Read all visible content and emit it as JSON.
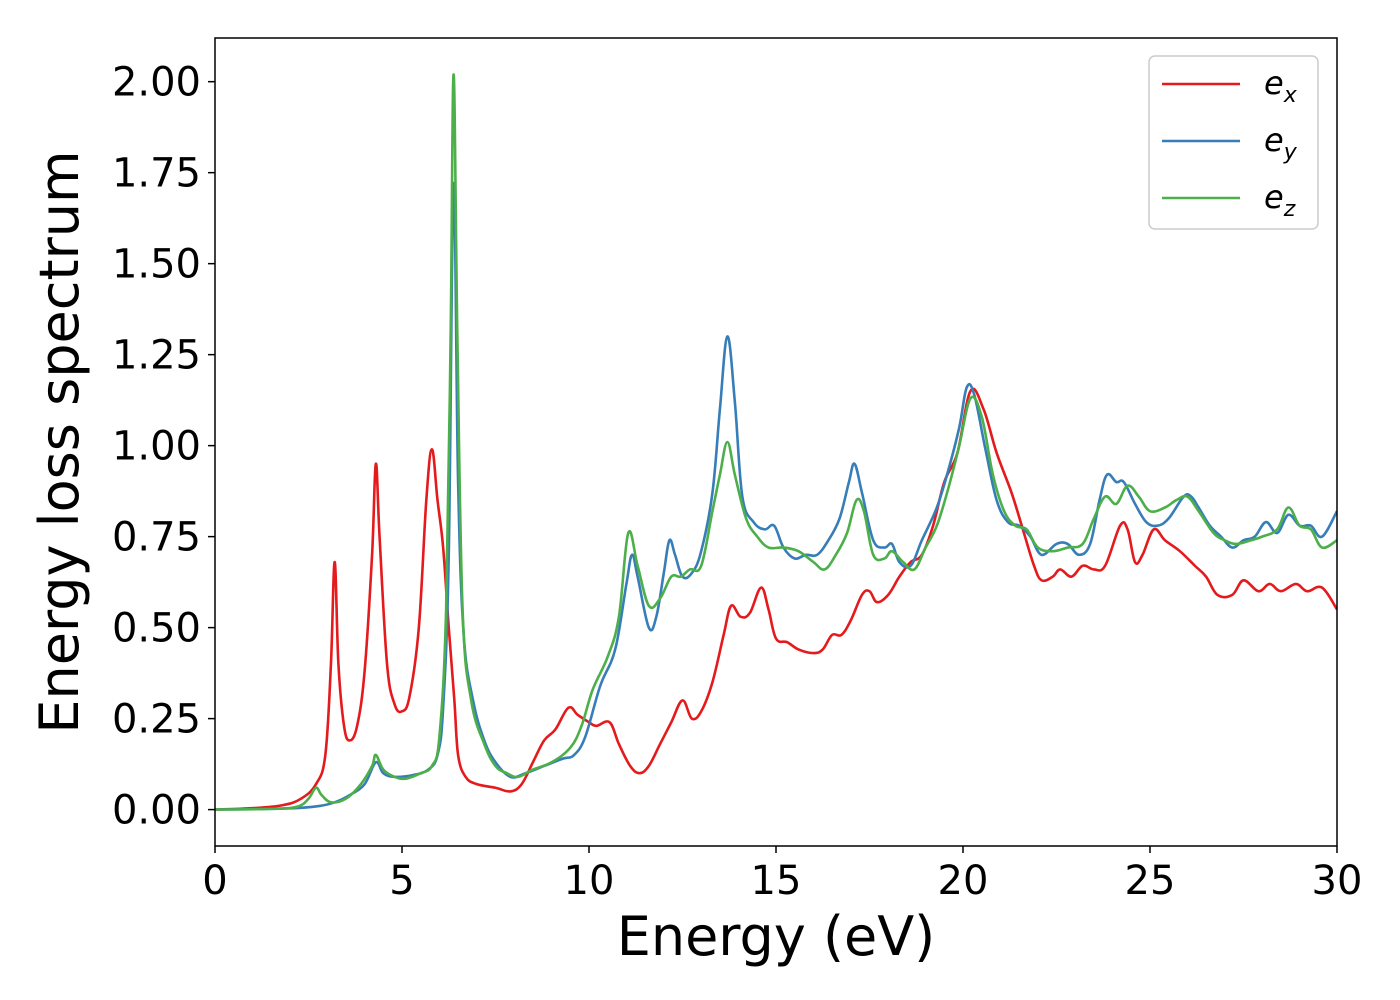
{
  "chart_data": {
    "type": "line",
    "xlabel": "Energy (eV)",
    "ylabel": "Energy loss spectrum",
    "xlim": [
      0,
      30
    ],
    "ylim": [
      -0.1,
      2.12
    ],
    "xticks": [
      0,
      5,
      10,
      15,
      20,
      25,
      30
    ],
    "xtick_labels": [
      "0",
      "5",
      "10",
      "15",
      "20",
      "25",
      "30"
    ],
    "yticks": [
      0.0,
      0.25,
      0.5,
      0.75,
      1.0,
      1.25,
      1.5,
      1.75,
      2.0
    ],
    "ytick_labels": [
      "0.00",
      "0.25",
      "0.50",
      "0.75",
      "1.00",
      "1.25",
      "1.50",
      "1.75",
      "2.00"
    ],
    "grid": false,
    "legend_position": "top-right",
    "series": [
      {
        "name": "e_x",
        "legend_main": "e",
        "legend_sub": "x",
        "color": "#e41a1c",
        "points": [
          [
            0,
            0
          ],
          [
            1,
            0.004
          ],
          [
            1.8,
            0.012
          ],
          [
            2.3,
            0.03
          ],
          [
            2.7,
            0.07
          ],
          [
            2.95,
            0.15
          ],
          [
            3.1,
            0.4
          ],
          [
            3.2,
            0.68
          ],
          [
            3.3,
            0.4
          ],
          [
            3.45,
            0.23
          ],
          [
            3.6,
            0.19
          ],
          [
            3.8,
            0.23
          ],
          [
            4.0,
            0.38
          ],
          [
            4.2,
            0.7
          ],
          [
            4.3,
            0.95
          ],
          [
            4.4,
            0.75
          ],
          [
            4.6,
            0.4
          ],
          [
            4.8,
            0.29
          ],
          [
            5.0,
            0.27
          ],
          [
            5.2,
            0.31
          ],
          [
            5.45,
            0.5
          ],
          [
            5.65,
            0.85
          ],
          [
            5.8,
            0.99
          ],
          [
            5.95,
            0.85
          ],
          [
            6.1,
            0.72
          ],
          [
            6.25,
            0.5
          ],
          [
            6.4,
            0.3
          ],
          [
            6.5,
            0.15
          ],
          [
            6.7,
            0.09
          ],
          [
            7.0,
            0.07
          ],
          [
            7.5,
            0.06
          ],
          [
            7.9,
            0.05
          ],
          [
            8.2,
            0.07
          ],
          [
            8.5,
            0.13
          ],
          [
            8.8,
            0.19
          ],
          [
            9.1,
            0.22
          ],
          [
            9.45,
            0.28
          ],
          [
            9.7,
            0.26
          ],
          [
            10.0,
            0.24
          ],
          [
            10.2,
            0.23
          ],
          [
            10.55,
            0.24
          ],
          [
            10.8,
            0.18
          ],
          [
            11.1,
            0.12
          ],
          [
            11.35,
            0.1
          ],
          [
            11.6,
            0.12
          ],
          [
            11.9,
            0.18
          ],
          [
            12.2,
            0.24
          ],
          [
            12.5,
            0.3
          ],
          [
            12.75,
            0.25
          ],
          [
            13.0,
            0.27
          ],
          [
            13.3,
            0.35
          ],
          [
            13.6,
            0.48
          ],
          [
            13.8,
            0.56
          ],
          [
            14.05,
            0.53
          ],
          [
            14.3,
            0.54
          ],
          [
            14.6,
            0.61
          ],
          [
            14.8,
            0.55
          ],
          [
            15.0,
            0.47
          ],
          [
            15.3,
            0.46
          ],
          [
            15.6,
            0.44
          ],
          [
            16.0,
            0.43
          ],
          [
            16.25,
            0.44
          ],
          [
            16.5,
            0.48
          ],
          [
            16.75,
            0.48
          ],
          [
            17.0,
            0.52
          ],
          [
            17.3,
            0.59
          ],
          [
            17.5,
            0.6
          ],
          [
            17.7,
            0.57
          ],
          [
            18.0,
            0.59
          ],
          [
            18.3,
            0.64
          ],
          [
            18.6,
            0.68
          ],
          [
            18.9,
            0.7
          ],
          [
            19.2,
            0.78
          ],
          [
            19.5,
            0.9
          ],
          [
            19.85,
            0.98
          ],
          [
            20.2,
            1.15
          ],
          [
            20.55,
            1.1
          ],
          [
            20.9,
            0.98
          ],
          [
            21.3,
            0.87
          ],
          [
            21.6,
            0.77
          ],
          [
            21.9,
            0.67
          ],
          [
            22.1,
            0.63
          ],
          [
            22.4,
            0.64
          ],
          [
            22.6,
            0.66
          ],
          [
            22.9,
            0.64
          ],
          [
            23.2,
            0.67
          ],
          [
            23.5,
            0.66
          ],
          [
            23.8,
            0.67
          ],
          [
            24.2,
            0.78
          ],
          [
            24.4,
            0.77
          ],
          [
            24.6,
            0.68
          ],
          [
            24.8,
            0.7
          ],
          [
            25.1,
            0.77
          ],
          [
            25.4,
            0.74
          ],
          [
            25.8,
            0.71
          ],
          [
            26.2,
            0.67
          ],
          [
            26.5,
            0.64
          ],
          [
            26.8,
            0.59
          ],
          [
            27.2,
            0.59
          ],
          [
            27.5,
            0.63
          ],
          [
            27.9,
            0.6
          ],
          [
            28.2,
            0.62
          ],
          [
            28.5,
            0.6
          ],
          [
            28.9,
            0.62
          ],
          [
            29.2,
            0.6
          ],
          [
            29.6,
            0.61
          ],
          [
            30,
            0.55
          ]
        ]
      },
      {
        "name": "e_y",
        "legend_main": "e",
        "legend_sub": "y",
        "color": "#377eb8",
        "points": [
          [
            0,
            0
          ],
          [
            1.5,
            0.002
          ],
          [
            2.3,
            0.005
          ],
          [
            2.8,
            0.01
          ],
          [
            3.2,
            0.02
          ],
          [
            3.6,
            0.04
          ],
          [
            4.0,
            0.07
          ],
          [
            4.3,
            0.13
          ],
          [
            4.5,
            0.1
          ],
          [
            4.8,
            0.09
          ],
          [
            5.3,
            0.095
          ],
          [
            5.7,
            0.11
          ],
          [
            5.95,
            0.15
          ],
          [
            6.1,
            0.28
          ],
          [
            6.25,
            0.7
          ],
          [
            6.38,
            1.72
          ],
          [
            6.5,
            0.9
          ],
          [
            6.65,
            0.48
          ],
          [
            6.9,
            0.3
          ],
          [
            7.2,
            0.19
          ],
          [
            7.5,
            0.13
          ],
          [
            7.9,
            0.09
          ],
          [
            8.3,
            0.1
          ],
          [
            8.8,
            0.12
          ],
          [
            9.3,
            0.14
          ],
          [
            9.6,
            0.15
          ],
          [
            9.9,
            0.2
          ],
          [
            10.3,
            0.34
          ],
          [
            10.7,
            0.44
          ],
          [
            11.0,
            0.62
          ],
          [
            11.15,
            0.7
          ],
          [
            11.3,
            0.64
          ],
          [
            11.6,
            0.5
          ],
          [
            11.8,
            0.53
          ],
          [
            12.0,
            0.65
          ],
          [
            12.15,
            0.74
          ],
          [
            12.3,
            0.7
          ],
          [
            12.5,
            0.64
          ],
          [
            12.75,
            0.65
          ],
          [
            13.0,
            0.71
          ],
          [
            13.3,
            0.87
          ],
          [
            13.5,
            1.1
          ],
          [
            13.7,
            1.3
          ],
          [
            13.9,
            1.12
          ],
          [
            14.1,
            0.86
          ],
          [
            14.4,
            0.79
          ],
          [
            14.7,
            0.77
          ],
          [
            14.95,
            0.78
          ],
          [
            15.2,
            0.72
          ],
          [
            15.5,
            0.69
          ],
          [
            15.8,
            0.7
          ],
          [
            16.1,
            0.7
          ],
          [
            16.4,
            0.74
          ],
          [
            16.7,
            0.8
          ],
          [
            16.95,
            0.9
          ],
          [
            17.1,
            0.95
          ],
          [
            17.3,
            0.87
          ],
          [
            17.6,
            0.74
          ],
          [
            17.9,
            0.72
          ],
          [
            18.1,
            0.73
          ],
          [
            18.3,
            0.68
          ],
          [
            18.6,
            0.67
          ],
          [
            18.9,
            0.74
          ],
          [
            19.3,
            0.83
          ],
          [
            19.6,
            0.93
          ],
          [
            19.9,
            1.05
          ],
          [
            20.1,
            1.16
          ],
          [
            20.3,
            1.14
          ],
          [
            20.6,
            0.99
          ],
          [
            20.9,
            0.85
          ],
          [
            21.2,
            0.79
          ],
          [
            21.5,
            0.78
          ],
          [
            21.8,
            0.75
          ],
          [
            22.1,
            0.7
          ],
          [
            22.5,
            0.73
          ],
          [
            22.8,
            0.73
          ],
          [
            23.1,
            0.7
          ],
          [
            23.4,
            0.73
          ],
          [
            23.65,
            0.85
          ],
          [
            23.85,
            0.92
          ],
          [
            24.1,
            0.9
          ],
          [
            24.3,
            0.9
          ],
          [
            24.6,
            0.84
          ],
          [
            24.9,
            0.79
          ],
          [
            25.2,
            0.78
          ],
          [
            25.5,
            0.8
          ],
          [
            25.9,
            0.86
          ],
          [
            26.1,
            0.86
          ],
          [
            26.3,
            0.83
          ],
          [
            26.6,
            0.78
          ],
          [
            26.9,
            0.75
          ],
          [
            27.2,
            0.72
          ],
          [
            27.5,
            0.74
          ],
          [
            27.8,
            0.75
          ],
          [
            28.1,
            0.79
          ],
          [
            28.4,
            0.76
          ],
          [
            28.7,
            0.81
          ],
          [
            29.0,
            0.78
          ],
          [
            29.3,
            0.78
          ],
          [
            29.6,
            0.75
          ],
          [
            30,
            0.82
          ]
        ]
      },
      {
        "name": "e_z",
        "legend_main": "e",
        "legend_sub": "z",
        "color": "#4daf4a",
        "points": [
          [
            0,
            0
          ],
          [
            1.5,
            0.002
          ],
          [
            2.2,
            0.008
          ],
          [
            2.5,
            0.03
          ],
          [
            2.7,
            0.06
          ],
          [
            2.85,
            0.04
          ],
          [
            3.1,
            0.02
          ],
          [
            3.5,
            0.03
          ],
          [
            3.9,
            0.07
          ],
          [
            4.2,
            0.12
          ],
          [
            4.3,
            0.15
          ],
          [
            4.5,
            0.11
          ],
          [
            4.8,
            0.09
          ],
          [
            5.1,
            0.085
          ],
          [
            5.5,
            0.1
          ],
          [
            5.8,
            0.12
          ],
          [
            6.0,
            0.2
          ],
          [
            6.18,
            0.55
          ],
          [
            6.3,
            1.3
          ],
          [
            6.38,
            2.02
          ],
          [
            6.48,
            1.3
          ],
          [
            6.62,
            0.55
          ],
          [
            6.85,
            0.3
          ],
          [
            7.2,
            0.18
          ],
          [
            7.5,
            0.12
          ],
          [
            7.8,
            0.1
          ],
          [
            8.1,
            0.09
          ],
          [
            8.5,
            0.11
          ],
          [
            9.0,
            0.13
          ],
          [
            9.5,
            0.17
          ],
          [
            9.8,
            0.23
          ],
          [
            10.1,
            0.33
          ],
          [
            10.5,
            0.42
          ],
          [
            10.8,
            0.53
          ],
          [
            11.05,
            0.76
          ],
          [
            11.3,
            0.67
          ],
          [
            11.6,
            0.56
          ],
          [
            11.9,
            0.58
          ],
          [
            12.2,
            0.64
          ],
          [
            12.45,
            0.64
          ],
          [
            12.7,
            0.66
          ],
          [
            13.0,
            0.67
          ],
          [
            13.3,
            0.82
          ],
          [
            13.5,
            0.92
          ],
          [
            13.7,
            1.01
          ],
          [
            13.9,
            0.92
          ],
          [
            14.2,
            0.8
          ],
          [
            14.5,
            0.75
          ],
          [
            14.8,
            0.72
          ],
          [
            15.2,
            0.72
          ],
          [
            15.6,
            0.71
          ],
          [
            16.0,
            0.68
          ],
          [
            16.3,
            0.66
          ],
          [
            16.6,
            0.7
          ],
          [
            16.9,
            0.76
          ],
          [
            17.15,
            0.85
          ],
          [
            17.35,
            0.82
          ],
          [
            17.6,
            0.7
          ],
          [
            17.9,
            0.69
          ],
          [
            18.1,
            0.71
          ],
          [
            18.4,
            0.68
          ],
          [
            18.7,
            0.66
          ],
          [
            19.0,
            0.72
          ],
          [
            19.3,
            0.78
          ],
          [
            19.6,
            0.88
          ],
          [
            19.9,
            1.0
          ],
          [
            20.2,
            1.13
          ],
          [
            20.5,
            1.08
          ],
          [
            20.8,
            0.92
          ],
          [
            21.1,
            0.82
          ],
          [
            21.4,
            0.78
          ],
          [
            21.7,
            0.77
          ],
          [
            22.0,
            0.72
          ],
          [
            22.4,
            0.71
          ],
          [
            22.8,
            0.72
          ],
          [
            23.2,
            0.73
          ],
          [
            23.5,
            0.8
          ],
          [
            23.8,
            0.86
          ],
          [
            24.1,
            0.84
          ],
          [
            24.4,
            0.89
          ],
          [
            24.7,
            0.86
          ],
          [
            25.0,
            0.82
          ],
          [
            25.4,
            0.83
          ],
          [
            25.7,
            0.85
          ],
          [
            26.0,
            0.86
          ],
          [
            26.3,
            0.82
          ],
          [
            26.7,
            0.76
          ],
          [
            27.0,
            0.74
          ],
          [
            27.3,
            0.73
          ],
          [
            27.7,
            0.74
          ],
          [
            28.0,
            0.75
          ],
          [
            28.4,
            0.77
          ],
          [
            28.7,
            0.83
          ],
          [
            29.0,
            0.78
          ],
          [
            29.3,
            0.77
          ],
          [
            29.6,
            0.72
          ],
          [
            30,
            0.74
          ]
        ]
      }
    ]
  }
}
